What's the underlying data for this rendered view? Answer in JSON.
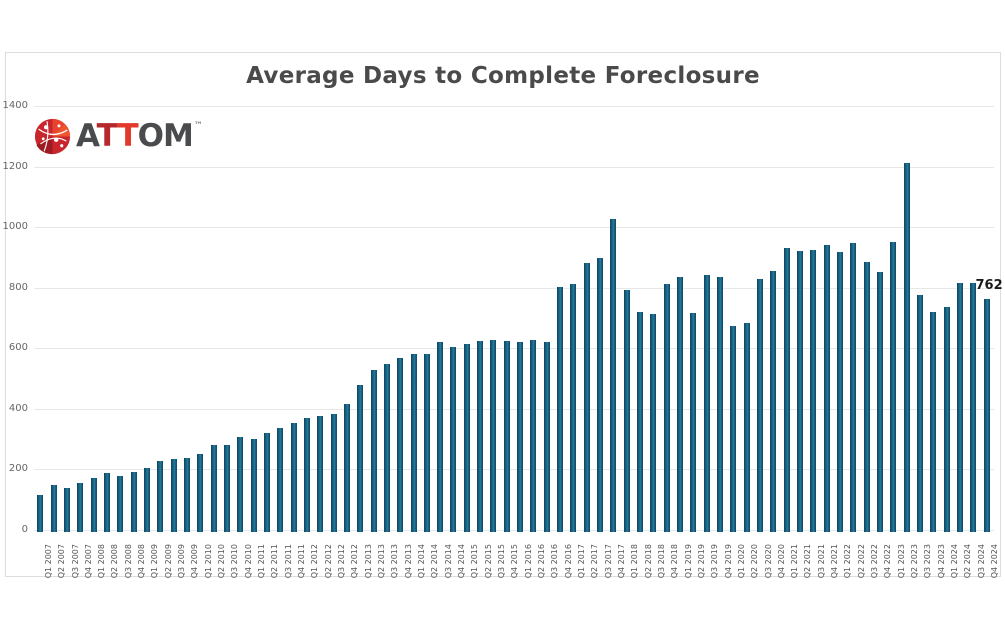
{
  "page": {
    "background": "#ffffff",
    "panel_border_color": "#dddddd"
  },
  "logo": {
    "name": "ATTOM",
    "tm": "™",
    "icon": "attom-globe-network-icon",
    "icon_color": "#c9252c",
    "icon_accent": "#e8432e",
    "icon_shadow": "#9e1b23",
    "letters": [
      {
        "ch": "A",
        "color": "#4a4b4d"
      },
      {
        "ch": "T",
        "color": "#b5282c"
      },
      {
        "ch": "T",
        "color": "#e2392b"
      },
      {
        "ch": "O",
        "color": "#4a4b4d"
      },
      {
        "ch": "M",
        "color": "#4a4b4d"
      }
    ]
  },
  "chart_data": {
    "type": "bar",
    "title": "Average Days to Complete Foreclosure",
    "title_color": "#4a4a4a",
    "xlabel": "",
    "ylabel": "",
    "ylim": [
      0,
      1400
    ],
    "yticks": [
      0,
      200,
      400,
      600,
      800,
      1000,
      1200,
      1400
    ],
    "grid": "horizontal",
    "legend": "none",
    "bar_color": "#16607f",
    "axis_label_color": "#666666",
    "gridline_color": "#e7e7e7",
    "categories": [
      "Q1 2007",
      "Q2 2007",
      "Q3 2007",
      "Q4 2007",
      "Q1 2008",
      "Q2 2008",
      "Q3 2008",
      "Q4 2008",
      "Q1 2009",
      "Q2 2009",
      "Q3 2009",
      "Q4 2009",
      "Q1 2010",
      "Q2 2010",
      "Q3 2010",
      "Q4 2010",
      "Q1 2011",
      "Q2 2011",
      "Q3 2011",
      "Q4 2011",
      "Q1 2012",
      "Q2 2012",
      "Q3 2012",
      "Q4 2012",
      "Q1 2013",
      "Q2 2013",
      "Q3 2013",
      "Q4 2013",
      "Q1 2014",
      "Q2 2014",
      "Q3 2014",
      "Q4 2014",
      "Q1 2015",
      "Q2 2015",
      "Q3 2015",
      "Q4 2015",
      "Q1 2016",
      "Q2 2016",
      "Q3 2016",
      "Q4 2016",
      "Q1 2017",
      "Q2 2017",
      "Q3 2017",
      "Q4 2017",
      "Q1 2018",
      "Q2 2018",
      "Q3 2018",
      "Q4 2018",
      "Q1 2019",
      "Q2 2019",
      "Q3 2019",
      "Q4 2019",
      "Q1 2020",
      "Q2 2020",
      "Q3 2020",
      "Q4 2020",
      "Q1 2021",
      "Q2 2021",
      "Q3 2021",
      "Q4 2021",
      "Q1 2022",
      "Q2 2022",
      "Q3 2022",
      "Q4 2022",
      "Q1 2023",
      "Q2 2023",
      "Q3 2023",
      "Q4 2023",
      "Q1 2024",
      "Q2 2024",
      "Q3 2024",
      "Q4 2024"
    ],
    "values": [
      115,
      150,
      138,
      157,
      171,
      189,
      180,
      191,
      204,
      228,
      236,
      239,
      250,
      280,
      282,
      308,
      299,
      319,
      336,
      352,
      369,
      377,
      382,
      415,
      478,
      528,
      549,
      569,
      580,
      582,
      621,
      605,
      615,
      625,
      628,
      625,
      620,
      628,
      620,
      803,
      814,
      883,
      899,
      1027,
      791,
      720,
      713,
      811,
      835,
      716,
      841,
      834,
      673,
      685,
      830,
      857,
      930,
      922,
      924,
      941,
      917,
      948,
      885,
      852,
      950,
      1212,
      775,
      720,
      736,
      815,
      815,
      762
    ],
    "annotation": {
      "text": "762",
      "category": "Q4 2024",
      "color": "#1a1a1a"
    }
  }
}
